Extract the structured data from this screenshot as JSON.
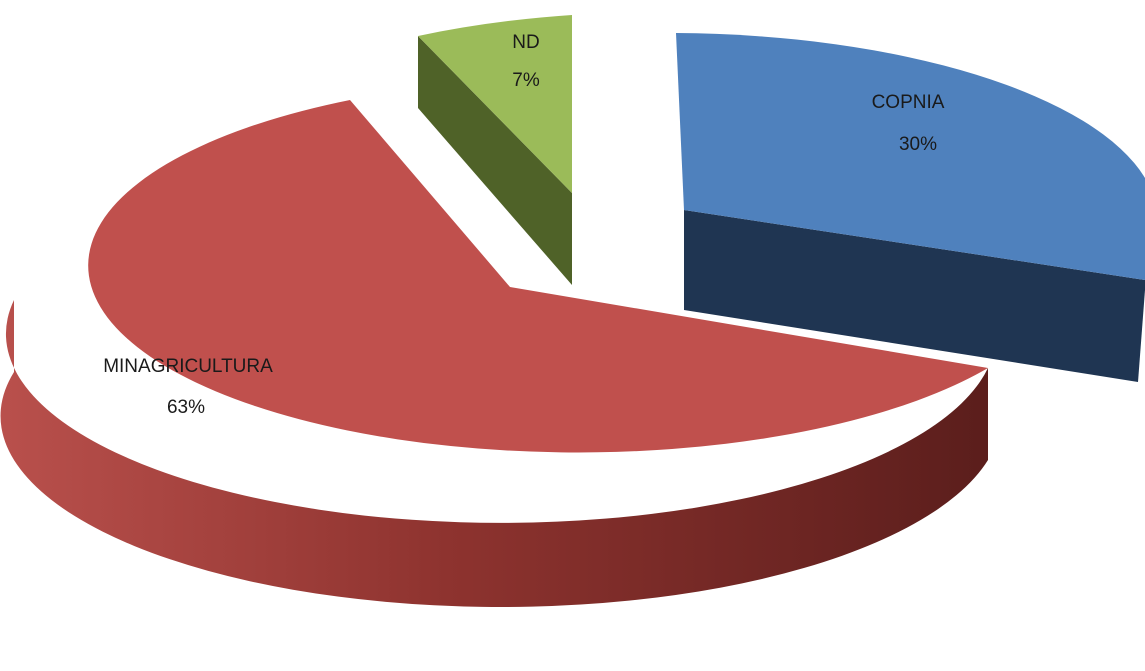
{
  "chart_data": {
    "type": "pie",
    "style": "3d-exploded",
    "slices": [
      {
        "label": "MINAGRICULTURA",
        "value": 63,
        "value_label": "63%",
        "color": "#c0504d",
        "side_color": "#7a2a28"
      },
      {
        "label": "ND",
        "value": 7,
        "value_label": "7%",
        "color": "#9bbb59",
        "side_color": "#4f6228"
      },
      {
        "label": "COPNIA",
        "value": 30,
        "value_label": "30%",
        "color": "#4f81bd",
        "side_color": "#1f3552"
      }
    ]
  }
}
